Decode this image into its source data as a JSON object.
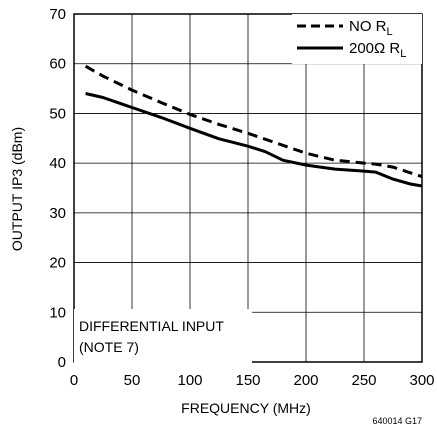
{
  "chart_data": {
    "type": "line",
    "xlabel": "FREQUENCY (MHz)",
    "ylabel": "OUTPUT IP3 (dBm)",
    "xlim": [
      0,
      300
    ],
    "ylim": [
      0,
      70
    ],
    "xticks": [
      "0",
      "50",
      "100",
      "150",
      "200",
      "250",
      "300"
    ],
    "yticks": [
      "0",
      "10",
      "20",
      "30",
      "40",
      "50",
      "60",
      "70"
    ],
    "grid": true,
    "legend_position": "top-right",
    "annotation": [
      "DIFFERENTIAL INPUT",
      "(NOTE 7)"
    ],
    "figure_id": "640014 G17",
    "series": [
      {
        "name": "NO R_L",
        "legend_main": "NO R",
        "legend_sub": "L",
        "style": "dashed",
        "x": [
          10,
          25,
          50,
          75,
          100,
          125,
          150,
          175,
          200,
          225,
          250,
          260,
          275,
          300
        ],
        "y": [
          59.5,
          57.5,
          54.7,
          52.2,
          49.8,
          47.8,
          46,
          44,
          42,
          40.6,
          40,
          39.8,
          39.2,
          37.3
        ]
      },
      {
        "name": "200Ω R_L",
        "legend_main": "200Ω R",
        "legend_sub": "L",
        "style": "solid",
        "x": [
          10,
          25,
          50,
          75,
          100,
          125,
          150,
          165,
          180,
          200,
          225,
          250,
          260,
          275,
          290,
          300
        ],
        "y": [
          54,
          53.2,
          51.2,
          49.2,
          47,
          44.9,
          43.4,
          42.3,
          40.6,
          39.6,
          38.8,
          38.4,
          38.2,
          36.8,
          35.8,
          35.4
        ]
      }
    ]
  }
}
